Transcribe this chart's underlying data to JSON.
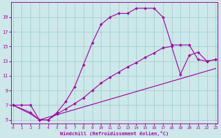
{
  "xlabel": "Windchill (Refroidissement éolien,°C)",
  "bg_color": "#cce8e8",
  "line_color": "#aa00aa",
  "grid_color": "#99cccc",
  "curve1_x": [
    0,
    1,
    2,
    3,
    4,
    5,
    6,
    7,
    8,
    9,
    10,
    11,
    12,
    13,
    14,
    15,
    16,
    17,
    18,
    19,
    20,
    21,
    22,
    23
  ],
  "curve1_y": [
    7.0,
    7.0,
    7.0,
    5.0,
    5.0,
    6.0,
    7.5,
    9.5,
    12.5,
    15.5,
    18.0,
    19.0,
    19.5,
    19.5,
    20.2,
    20.2,
    20.2,
    19.0,
    15.2,
    15.2,
    15.2,
    13.2,
    13.0,
    13.2
  ],
  "curve2_x": [
    0,
    2,
    3,
    4,
    5,
    6,
    7,
    8,
    9,
    10,
    11,
    12,
    13,
    14,
    15,
    16,
    17,
    18,
    19,
    20,
    21,
    22,
    23
  ],
  "curve2_y": [
    7.0,
    6.0,
    5.0,
    5.0,
    5.8,
    6.5,
    7.2,
    8.0,
    9.0,
    10.0,
    10.8,
    11.5,
    12.2,
    12.8,
    13.5,
    14.1,
    14.8,
    15.0,
    11.2,
    13.8,
    14.2,
    13.0,
    13.2
  ],
  "curve3_x": [
    0,
    2,
    3,
    23
  ],
  "curve3_y": [
    7.0,
    5.8,
    5.0,
    12.0
  ],
  "ylim": [
    4.5,
    21.0
  ],
  "xlim": [
    -0.2,
    23.2
  ],
  "yticks": [
    5,
    7,
    9,
    11,
    13,
    15,
    17,
    19
  ],
  "xticks": [
    0,
    1,
    2,
    3,
    4,
    5,
    6,
    7,
    8,
    9,
    10,
    11,
    12,
    13,
    14,
    15,
    16,
    17,
    18,
    19,
    20,
    21,
    22,
    23
  ]
}
